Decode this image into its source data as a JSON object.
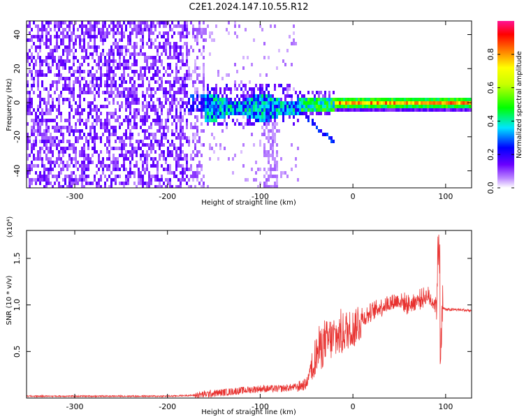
{
  "figure": {
    "title": "C2E1.2024.147.10.55.R12"
  },
  "chart_data": [
    {
      "type": "heatmap",
      "xlabel": "Height of straight line (km)",
      "ylabel": "Frequency (Hz)",
      "xlim": [
        -352,
        128
      ],
      "ylim": [
        -50,
        48
      ],
      "x_ticks": [
        -300,
        -200,
        -100,
        0,
        100
      ],
      "y_ticks": [
        -40,
        -20,
        0,
        20,
        40
      ],
      "colorbar": {
        "label": "Normalized spectral amplitude",
        "range": [
          0.0,
          1.0
        ],
        "ticks": [
          0.0,
          0.2,
          0.4,
          0.6,
          0.8
        ],
        "colormap": "rainbow (violet-blue-cyan-green-yellow-red-magenta)",
        "colors": [
          "#ffffff",
          "#6a00ff",
          "#0000ff",
          "#00e5ff",
          "#00ff00",
          "#ffff00",
          "#ff7f00",
          "#ff0000",
          "#ff1493"
        ]
      },
      "description_regions": [
        {
          "x_range": [
            -352,
            -170
          ],
          "freq_range": [
            -50,
            48
          ],
          "amplitude": 0.1
        },
        {
          "x_range": [
            -180,
            -60
          ],
          "freq_range": [
            -8,
            5
          ],
          "amplitude": 0.35
        },
        {
          "x_range": [
            -60,
            128
          ],
          "freq_range": [
            -3,
            3
          ],
          "amplitude": 0.55
        },
        {
          "x_range": [
            -20,
            128
          ],
          "freq_range": [
            -1,
            2
          ],
          "amplitude": 0.85
        }
      ]
    },
    {
      "type": "line",
      "xlabel": "Height of straight line (km)",
      "ylabel": "SNR (10 * v/v)",
      "y_multiplier": "(x10⁴)",
      "xlim": [
        -352,
        128
      ],
      "ylim": [
        0,
        1.8
      ],
      "x_ticks": [
        -300,
        -200,
        -100,
        0,
        100
      ],
      "y_ticks": [
        0.5,
        1.0,
        1.5
      ],
      "y_tick_labels": [
        "0.5",
        "1.0",
        "1.5"
      ],
      "color": "#e8312f",
      "series": [
        {
          "x": [
            -352,
            -300,
            -250,
            -200,
            -170,
            -150,
            -120,
            -100,
            -80,
            -60,
            -50,
            -45,
            -40,
            -35,
            -30,
            -20,
            -10,
            0,
            10,
            20,
            30,
            40,
            50,
            60,
            70,
            80,
            90,
            92,
            94,
            96,
            100,
            110,
            128
          ],
          "values": [
            0.02,
            0.02,
            0.02,
            0.02,
            0.03,
            0.05,
            0.08,
            0.1,
            0.1,
            0.12,
            0.15,
            0.35,
            0.45,
            0.55,
            0.6,
            0.65,
            0.7,
            0.75,
            0.85,
            0.92,
            0.98,
            1.02,
            1.05,
            1.0,
            1.05,
            1.1,
            1.0,
            1.6,
            0.4,
            0.98,
            0.95,
            0.95,
            0.94
          ]
        }
      ]
    }
  ]
}
